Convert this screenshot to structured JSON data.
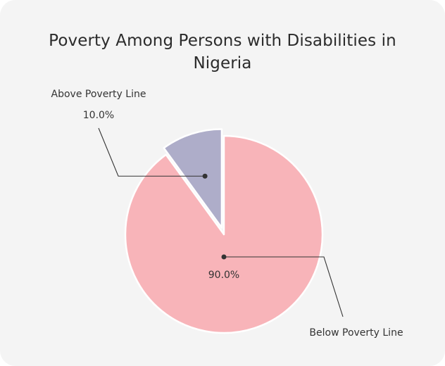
{
  "chart_data": {
    "type": "pie",
    "title": "Poverty Among Persons with Disabilities in Nigeria",
    "slices": [
      {
        "name": "Above Poverty Line",
        "value": 10.0,
        "label": "10.0%",
        "color": "#aeadc9",
        "exploded": true
      },
      {
        "name": "Below Poverty Line",
        "value": 90.0,
        "label": "90.0%",
        "color": "#f8b4b9",
        "exploded": false
      }
    ]
  }
}
